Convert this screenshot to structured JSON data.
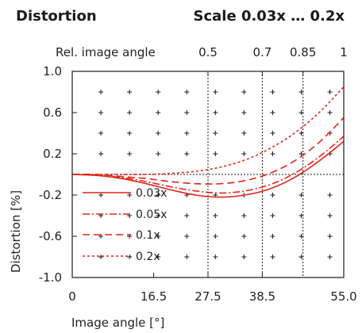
{
  "chart_data": {
    "type": "line",
    "title": "Distortion",
    "subtitle": "Scale 0.03x … 0.2x",
    "xlabel": "Image angle [°]",
    "ylabel": "Distortion [%]",
    "top_axis_label": "Rel. image angle",
    "xlim": [
      0,
      55
    ],
    "ylim": [
      -1.0,
      1.0
    ],
    "x_ticks": [
      {
        "value": 0,
        "label": "0"
      },
      {
        "value": 16.5,
        "label": "16.5"
      },
      {
        "value": 27.5,
        "label": "27.5"
      },
      {
        "value": 38.5,
        "label": "38.5"
      },
      {
        "value": 55,
        "label": "55.0"
      }
    ],
    "top_ticks": [
      {
        "value": 27.5,
        "label": "0.5"
      },
      {
        "value": 38.5,
        "label": "0.7"
      },
      {
        "value": 46.75,
        "label": "0.85"
      },
      {
        "value": 55,
        "label": "1"
      }
    ],
    "y_ticks": [
      {
        "value": 1.0,
        "label": "1.0"
      },
      {
        "value": 0.6,
        "label": "0.6"
      },
      {
        "value": 0.2,
        "label": "0.2"
      },
      {
        "value": -0.2,
        "label": "-0.2"
      },
      {
        "value": -0.6,
        "label": "-0.6"
      },
      {
        "value": -1.0,
        "label": "-1.0"
      }
    ],
    "grid": "plus-markers",
    "legend_position": "bottom-left",
    "color": "#e1261c",
    "series": [
      {
        "name": "0.03x",
        "dash": "solid",
        "x": [
          0,
          5,
          10,
          15,
          20,
          25,
          30,
          35,
          40,
          45,
          50,
          55
        ],
        "y": [
          0,
          -0.01,
          -0.04,
          -0.09,
          -0.15,
          -0.2,
          -0.22,
          -0.2,
          -0.14,
          -0.03,
          0.13,
          0.32
        ]
      },
      {
        "name": "0.05x",
        "dash": "dash-dot",
        "x": [
          0,
          5,
          10,
          15,
          20,
          25,
          30,
          35,
          40,
          45,
          50,
          55
        ],
        "y": [
          0,
          -0.01,
          -0.03,
          -0.07,
          -0.12,
          -0.16,
          -0.18,
          -0.16,
          -0.1,
          0.01,
          0.17,
          0.37
        ]
      },
      {
        "name": "0.1x",
        "dash": "dashed",
        "x": [
          0,
          5,
          10,
          15,
          20,
          25,
          30,
          35,
          40,
          45,
          50,
          55
        ],
        "y": [
          0,
          0,
          -0.02,
          -0.04,
          -0.07,
          -0.09,
          -0.09,
          -0.06,
          0.01,
          0.13,
          0.31,
          0.55
        ]
      },
      {
        "name": "0.2x",
        "dash": "dotted",
        "x": [
          0,
          5,
          10,
          15,
          20,
          25,
          30,
          35,
          40,
          45,
          50,
          55
        ],
        "y": [
          0,
          0,
          0,
          0,
          0.01,
          0.03,
          0.07,
          0.14,
          0.25,
          0.4,
          0.6,
          0.85
        ]
      }
    ]
  }
}
